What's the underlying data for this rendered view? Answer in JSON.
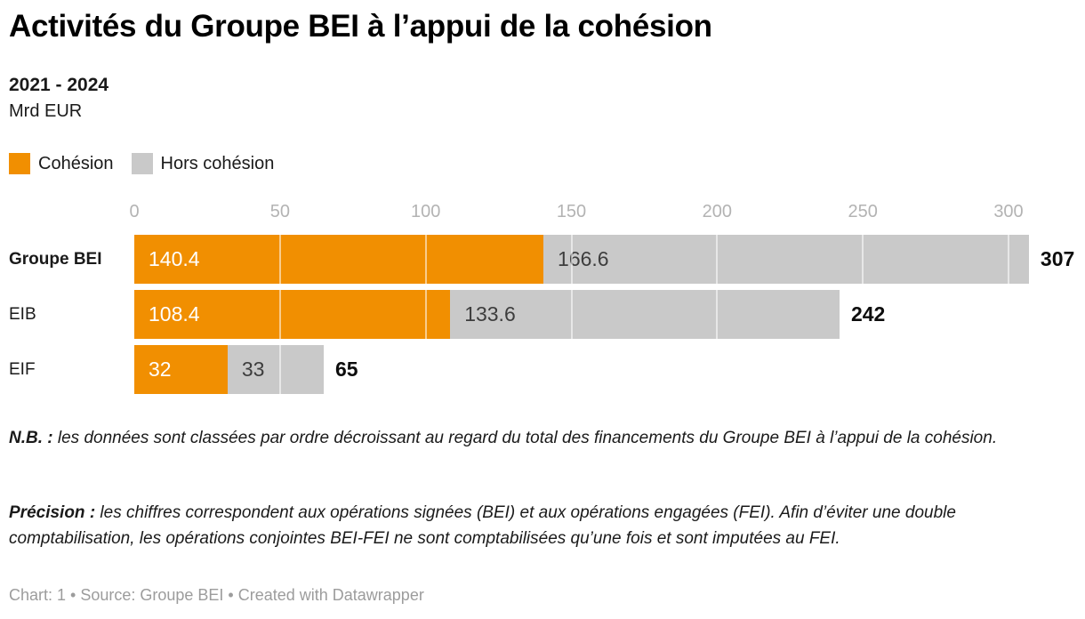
{
  "header": {
    "title": "Activités du Groupe BEI à l’appui de la cohésion",
    "subtitle": "2021 - 2024",
    "unit": "Mrd EUR"
  },
  "legend": [
    {
      "key": "cohesion",
      "label": "Cohésion",
      "color": "#F18F01"
    },
    {
      "key": "hors-cohesion",
      "label": "Hors cohésion",
      "color": "#C9C9C9"
    }
  ],
  "chart_data": {
    "type": "bar",
    "orientation": "horizontal",
    "stacked": true,
    "title": "Activités du Groupe BEI à l’appui de la cohésion",
    "subtitle": "2021 - 2024",
    "unit": "Mrd EUR",
    "categories": [
      "Groupe BEI",
      "EIB",
      "EIF"
    ],
    "category_keys": [
      "groupe-bei",
      "eib",
      "eif"
    ],
    "category_bold": [
      true,
      false,
      false
    ],
    "series": [
      {
        "key": "cohesion",
        "name": "Cohésion",
        "color": "#F18F01",
        "label_color": "#ffffff",
        "values": [
          140.4,
          108.4,
          32
        ]
      },
      {
        "key": "hors-cohesion",
        "name": "Hors cohésion",
        "color": "#C9C9C9",
        "label_color": "#3d3d3d",
        "values": [
          166.6,
          133.6,
          33
        ]
      }
    ],
    "totals": [
      307,
      242,
      65
    ],
    "x_ticks": [
      0,
      50,
      100,
      150,
      200,
      250,
      300
    ],
    "xlim": [
      0,
      307
    ],
    "xlabel": "",
    "ylabel": "",
    "grid": true,
    "gridline_color_over_bars": "rgba(255,255,255,0.55)",
    "legend_position": "top"
  },
  "notes": [
    {
      "lead": "N.B. :",
      "text": " les données sont classées par ordre décroissant au regard du total des financements du Groupe BEI à l’appui de la cohésion."
    },
    {
      "lead": "Précision :",
      "text": " les chiffres correspondent aux opérations signées (BEI) et aux opérations engagées (FEI). Afin d’éviter une double comptabilisation, les opérations conjointes BEI-FEI ne sont comptabilisées qu’une fois et sont imputées au FEI."
    }
  ],
  "footer": {
    "text": "Chart: 1 • Source: Groupe BEI • Created with Datawrapper"
  },
  "colors": {
    "accent_orange": "#F18F01",
    "bar_gray": "#C9C9C9",
    "tick_gray": "#b3b3b3",
    "text_dark": "#1a1a1a",
    "footer_gray": "#9c9c9c"
  }
}
